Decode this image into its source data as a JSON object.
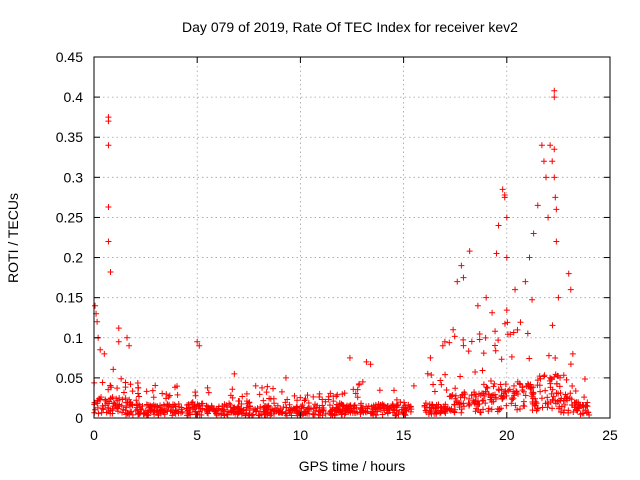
{
  "chart_data": {
    "type": "scatter",
    "title": "Day 079 of 2019, Rate Of TEC Index for receiver kev2",
    "xlabel": "GPS time / hours",
    "ylabel": "ROTI / TECUs",
    "xlim": [
      0,
      25
    ],
    "ylim": [
      0,
      0.45
    ],
    "grid": true,
    "marker": "plus",
    "color": "#ff0000",
    "x_ticks": [
      0,
      5,
      10,
      15,
      20,
      25
    ],
    "x_tick_labels": [
      "0",
      "5",
      "10",
      "15",
      "20",
      "25"
    ],
    "y_ticks": [
      0,
      0.05,
      0.1,
      0.15,
      0.2,
      0.25,
      0.3,
      0.35,
      0.4,
      0.45
    ],
    "y_tick_labels": [
      "0",
      "0.05",
      "0.1",
      "0.15",
      "0.2",
      "0.25",
      "0.3",
      "0.35",
      "0.4",
      "0.45"
    ],
    "envelope": [
      {
        "from": 0.0,
        "to": 0.2,
        "base": 0.022,
        "peak": 0.06
      },
      {
        "from": 0.2,
        "to": 1.0,
        "base": 0.025,
        "peak": 0.07
      },
      {
        "from": 1.0,
        "to": 1.8,
        "base": 0.022,
        "peak": 0.06
      },
      {
        "from": 1.8,
        "to": 4.7,
        "base": 0.016,
        "peak": 0.045
      },
      {
        "from": 4.7,
        "to": 5.3,
        "base": 0.018,
        "peak": 0.05
      },
      {
        "from": 5.3,
        "to": 9.0,
        "base": 0.014,
        "peak": 0.04
      },
      {
        "from": 9.0,
        "to": 12.0,
        "base": 0.012,
        "peak": 0.035
      },
      {
        "from": 12.0,
        "to": 15.4,
        "base": 0.015,
        "peak": 0.045
      },
      {
        "from": 16.0,
        "to": 17.2,
        "base": 0.018,
        "peak": 0.06
      },
      {
        "from": 17.2,
        "to": 19.0,
        "base": 0.03,
        "peak": 0.12
      },
      {
        "from": 19.0,
        "to": 20.5,
        "base": 0.04,
        "peak": 0.16
      },
      {
        "from": 20.5,
        "to": 21.5,
        "base": 0.04,
        "peak": 0.15
      },
      {
        "from": 21.5,
        "to": 22.6,
        "base": 0.05,
        "peak": 0.2
      },
      {
        "from": 22.6,
        "to": 23.2,
        "base": 0.03,
        "peak": 0.12
      },
      {
        "from": 23.2,
        "to": 24.0,
        "base": 0.018,
        "peak": 0.05
      }
    ],
    "notable_points": [
      {
        "x": 0.05,
        "y": 0.14
      },
      {
        "x": 0.1,
        "y": 0.13
      },
      {
        "x": 0.15,
        "y": 0.12
      },
      {
        "x": 0.2,
        "y": 0.1
      },
      {
        "x": 0.3,
        "y": 0.085
      },
      {
        "x": 0.5,
        "y": 0.08
      },
      {
        "x": 0.7,
        "y": 0.375
      },
      {
        "x": 0.7,
        "y": 0.37
      },
      {
        "x": 0.7,
        "y": 0.34
      },
      {
        "x": 0.7,
        "y": 0.263
      },
      {
        "x": 0.7,
        "y": 0.22
      },
      {
        "x": 0.8,
        "y": 0.182
      },
      {
        "x": 1.2,
        "y": 0.112
      },
      {
        "x": 1.2,
        "y": 0.095
      },
      {
        "x": 1.6,
        "y": 0.1
      },
      {
        "x": 1.7,
        "y": 0.09
      },
      {
        "x": 5.0,
        "y": 0.095
      },
      {
        "x": 5.1,
        "y": 0.09
      },
      {
        "x": 6.8,
        "y": 0.055
      },
      {
        "x": 9.3,
        "y": 0.05
      },
      {
        "x": 12.4,
        "y": 0.075
      },
      {
        "x": 13.2,
        "y": 0.07
      },
      {
        "x": 13.4,
        "y": 0.067
      },
      {
        "x": 15.5,
        "y": 0.04
      },
      {
        "x": 16.3,
        "y": 0.075
      },
      {
        "x": 16.9,
        "y": 0.09
      },
      {
        "x": 17.0,
        "y": 0.095
      },
      {
        "x": 17.4,
        "y": 0.11
      },
      {
        "x": 17.6,
        "y": 0.17
      },
      {
        "x": 17.8,
        "y": 0.19
      },
      {
        "x": 17.9,
        "y": 0.175
      },
      {
        "x": 18.2,
        "y": 0.208
      },
      {
        "x": 18.6,
        "y": 0.14
      },
      {
        "x": 19.0,
        "y": 0.15
      },
      {
        "x": 19.5,
        "y": 0.205
      },
      {
        "x": 19.6,
        "y": 0.24
      },
      {
        "x": 19.8,
        "y": 0.285
      },
      {
        "x": 19.9,
        "y": 0.278
      },
      {
        "x": 19.9,
        "y": 0.275
      },
      {
        "x": 20.0,
        "y": 0.25
      },
      {
        "x": 20.0,
        "y": 0.2
      },
      {
        "x": 20.4,
        "y": 0.16
      },
      {
        "x": 20.9,
        "y": 0.17
      },
      {
        "x": 21.1,
        "y": 0.2
      },
      {
        "x": 21.3,
        "y": 0.23
      },
      {
        "x": 21.5,
        "y": 0.265
      },
      {
        "x": 21.7,
        "y": 0.34
      },
      {
        "x": 21.8,
        "y": 0.32
      },
      {
        "x": 21.9,
        "y": 0.3
      },
      {
        "x": 22.0,
        "y": 0.25
      },
      {
        "x": 22.1,
        "y": 0.34
      },
      {
        "x": 22.2,
        "y": 0.32
      },
      {
        "x": 22.3,
        "y": 0.408
      },
      {
        "x": 22.3,
        "y": 0.4
      },
      {
        "x": 22.3,
        "y": 0.335
      },
      {
        "x": 22.3,
        "y": 0.3
      },
      {
        "x": 22.35,
        "y": 0.275
      },
      {
        "x": 22.4,
        "y": 0.26
      },
      {
        "x": 22.4,
        "y": 0.22
      },
      {
        "x": 22.5,
        "y": 0.15
      },
      {
        "x": 23.0,
        "y": 0.18
      },
      {
        "x": 23.1,
        "y": 0.16
      },
      {
        "x": 23.2,
        "y": 0.08
      }
    ]
  }
}
